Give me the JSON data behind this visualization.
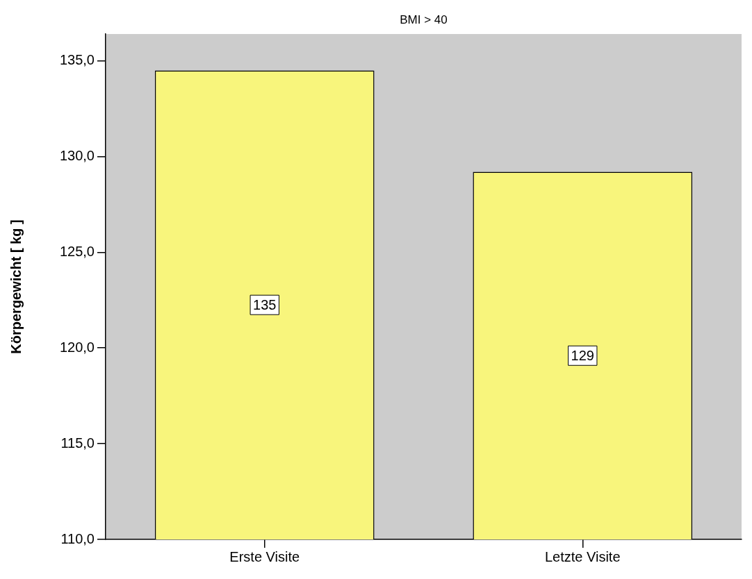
{
  "chart_data": {
    "type": "bar",
    "title": "BMI > 40",
    "ylabel": "Körpergewicht [ kg ]",
    "categories": [
      "Erste Visite",
      "Letzte Visite"
    ],
    "values": [
      134.5,
      129.2
    ],
    "value_labels": [
      "135",
      "129"
    ],
    "color": "#f8f57c",
    "ylim": [
      110,
      136.4
    ],
    "yticks": [
      {
        "value": 110,
        "label": "110,0"
      },
      {
        "value": 115,
        "label": "115,0"
      },
      {
        "value": 120,
        "label": "120,0"
      },
      {
        "value": 125,
        "label": "125,0"
      },
      {
        "value": 130,
        "label": "130,0"
      },
      {
        "value": 135,
        "label": "135,0"
      }
    ],
    "grid": false,
    "legend": false
  }
}
